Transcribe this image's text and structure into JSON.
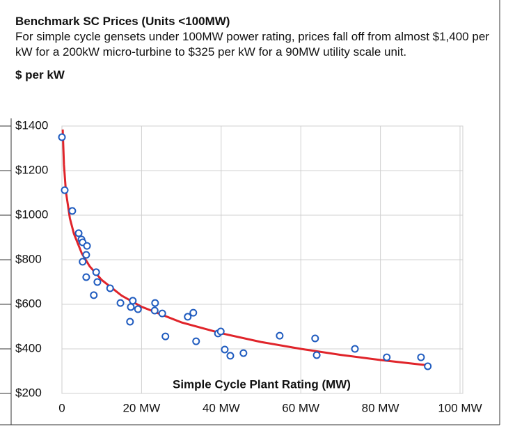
{
  "chart_data": {
    "type": "scatter",
    "title": "Benchmark SC Prices (Units <100MW)",
    "subtitle": "For simple cycle gensets under 100MW power rating, prices fall off from almost $1,400 per kW for a 200kW micro-turbine to $325 per kW for a 90MW utility scale unit.",
    "y_label": "$ per kW",
    "x_label": "Simple Cycle Plant Rating (MW)",
    "color": "#1f5bbf",
    "x": [
      0,
      0.7,
      2.6,
      4.2,
      4.9,
      5.2,
      6.3,
      6.1,
      5.2,
      6.1,
      8.6,
      8.9,
      8.0,
      12.1,
      14.7,
      17.8,
      17.3,
      17.1,
      19.1,
      23.4,
      23.3,
      25.2,
      26.0,
      31.6,
      33.0,
      33.7,
      39.2,
      39.9,
      40.9,
      42.3,
      45.6,
      54.7,
      63.6,
      64.0,
      73.6,
      81.6,
      90.2,
      91.9
    ],
    "values": [
      1350,
      1112,
      1019,
      919,
      891,
      878,
      862,
      822,
      791,
      722,
      744,
      700,
      641,
      672,
      606,
      616,
      588,
      522,
      578,
      606,
      572,
      559,
      456,
      544,
      562,
      434,
      469,
      478,
      397,
      369,
      381,
      459,
      447,
      372,
      400,
      362,
      362,
      322
    ],
    "trendline": {
      "color": "#e0242a",
      "x": [
        0.2,
        0.5,
        1,
        2,
        3,
        5,
        7,
        10,
        15,
        20,
        30,
        40,
        50,
        60,
        70,
        80,
        91.5
      ],
      "values": [
        1384,
        1226,
        1106,
        986,
        917,
        828,
        770,
        709,
        639,
        589,
        519,
        470,
        431,
        400,
        373,
        350,
        327
      ]
    },
    "xlim": [
      0,
      100
    ],
    "ylim": [
      200,
      1400
    ],
    "xticks": [
      0,
      {
        "value": 20,
        "label": "20 MW"
      },
      {
        "value": 40,
        "label": "40 MW"
      },
      {
        "value": 60,
        "label": "60 MW"
      },
      {
        "value": 80,
        "label": "80 MW"
      },
      {
        "value": 100,
        "label": "100 MW"
      }
    ],
    "yticks": [
      {
        "value": 200,
        "label": "$200"
      },
      {
        "value": 400,
        "label": "$400"
      },
      {
        "value": 600,
        "label": "$600"
      },
      {
        "value": 800,
        "label": "$800"
      },
      {
        "value": 1000,
        "label": "$1000"
      },
      {
        "value": 1200,
        "label": "$1200"
      },
      {
        "value": 1400,
        "label": "$1400"
      }
    ],
    "grid": true
  }
}
